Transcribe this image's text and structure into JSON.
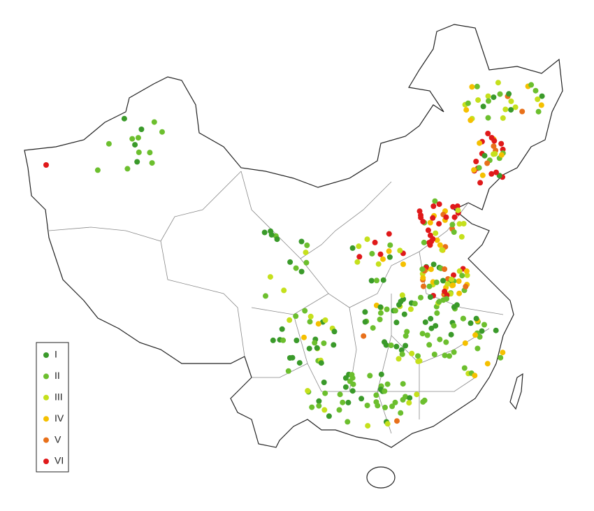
{
  "legend": {
    "items": [
      {
        "label": "I",
        "color": "#3a9a2a"
      },
      {
        "label": "II",
        "color": "#6cbf2e"
      },
      {
        "label": "III",
        "color": "#c5e01c"
      },
      {
        "label": "IV",
        "color": "#f5c000"
      },
      {
        "label": "V",
        "color": "#e8701a"
      },
      {
        "label": "VI",
        "color": "#e0191a"
      }
    ]
  }
}
